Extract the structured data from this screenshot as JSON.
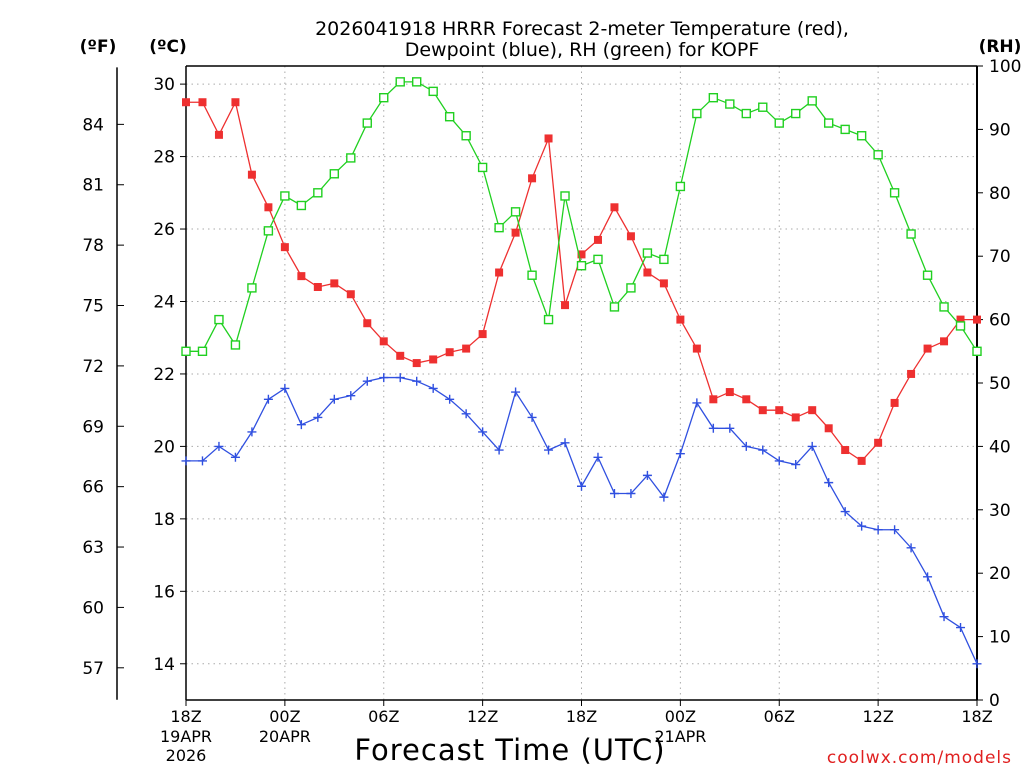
{
  "chart_data": {
    "type": "line",
    "title_line1": "2026041918 HRRR Forecast 2-meter Temperature (red),",
    "title_line2": "Dewpoint (blue), RH (green) for KOPF",
    "unit_f": "(ºF)",
    "unit_c": "(ºC)",
    "unit_rh": "(RH)",
    "xlabel": "Forecast Time (UTC)",
    "watermark": "coolwx.com/models",
    "x_ticks": [
      {
        "h": 0,
        "label": "18Z",
        "sub1": "19APR",
        "sub2": "2026"
      },
      {
        "h": 6,
        "label": "00Z",
        "sub1": "20APR",
        "sub2": ""
      },
      {
        "h": 12,
        "label": "06Z",
        "sub1": "",
        "sub2": ""
      },
      {
        "h": 18,
        "label": "12Z",
        "sub1": "",
        "sub2": ""
      },
      {
        "h": 24,
        "label": "18Z",
        "sub1": "",
        "sub2": ""
      },
      {
        "h": 30,
        "label": "00Z",
        "sub1": "21APR",
        "sub2": ""
      },
      {
        "h": 36,
        "label": "06Z",
        "sub1": "",
        "sub2": ""
      },
      {
        "h": 42,
        "label": "12Z",
        "sub1": "",
        "sub2": ""
      },
      {
        "h": 48,
        "label": "18Z",
        "sub1": "",
        "sub2": ""
      }
    ],
    "x_range": [
      0,
      48
    ],
    "c_range": [
      13.0,
      30.5
    ],
    "c_ticks": [
      14,
      16,
      18,
      20,
      22,
      24,
      26,
      28,
      30
    ],
    "f_ticks": [
      57,
      60,
      63,
      66,
      69,
      72,
      75,
      78,
      81,
      84
    ],
    "rh_range": [
      0,
      100
    ],
    "rh_ticks": [
      0,
      10,
      20,
      30,
      40,
      50,
      60,
      70,
      80,
      90,
      100
    ],
    "series": [
      {
        "name": "Temperature",
        "axis": "c",
        "color": "#ee3030",
        "marker": "filled-square",
        "values": [
          29.5,
          29.5,
          28.6,
          29.5,
          27.5,
          26.6,
          25.5,
          24.7,
          24.4,
          24.5,
          24.2,
          23.4,
          22.9,
          22.5,
          22.3,
          22.4,
          22.6,
          22.7,
          23.1,
          24.8,
          25.9,
          27.4,
          28.5,
          23.9,
          25.3,
          25.7,
          26.6,
          25.8,
          24.8,
          24.5,
          23.5,
          22.7,
          21.3,
          21.5,
          21.3,
          21.0,
          21.0,
          20.8,
          21.0,
          20.5,
          19.9,
          19.6,
          20.1,
          21.2,
          22.0,
          22.7,
          22.9,
          23.5,
          23.5
        ]
      },
      {
        "name": "Dewpoint",
        "axis": "c",
        "color": "#3050e0",
        "marker": "plus",
        "values": [
          19.6,
          19.6,
          20.0,
          19.7,
          20.4,
          21.3,
          21.6,
          20.6,
          20.8,
          21.3,
          21.4,
          21.8,
          21.9,
          21.9,
          21.8,
          21.6,
          21.3,
          20.9,
          20.4,
          19.9,
          21.5,
          20.8,
          19.9,
          20.1,
          18.9,
          19.7,
          18.7,
          18.7,
          19.2,
          18.6,
          19.8,
          21.2,
          20.5,
          20.5,
          20.0,
          19.9,
          19.6,
          19.5,
          20.0,
          19.0,
          18.2,
          17.8,
          17.7,
          17.7,
          17.2,
          16.4,
          15.3,
          15.0,
          14.0
        ]
      },
      {
        "name": "RH",
        "axis": "rh",
        "color": "#20d020",
        "marker": "open-square",
        "values": [
          55,
          55,
          60,
          56,
          65,
          74,
          79.5,
          78,
          80,
          83,
          85.5,
          91,
          95,
          97.5,
          97.5,
          96,
          92,
          89,
          84,
          74.5,
          77,
          67,
          60,
          79.5,
          68.5,
          69.5,
          62,
          65,
          70.5,
          69.5,
          81,
          92.5,
          95,
          94,
          92.5,
          93.5,
          91,
          92.5,
          94.5,
          91,
          90,
          89,
          86,
          80,
          73.5,
          67,
          62,
          59,
          55
        ]
      }
    ]
  }
}
